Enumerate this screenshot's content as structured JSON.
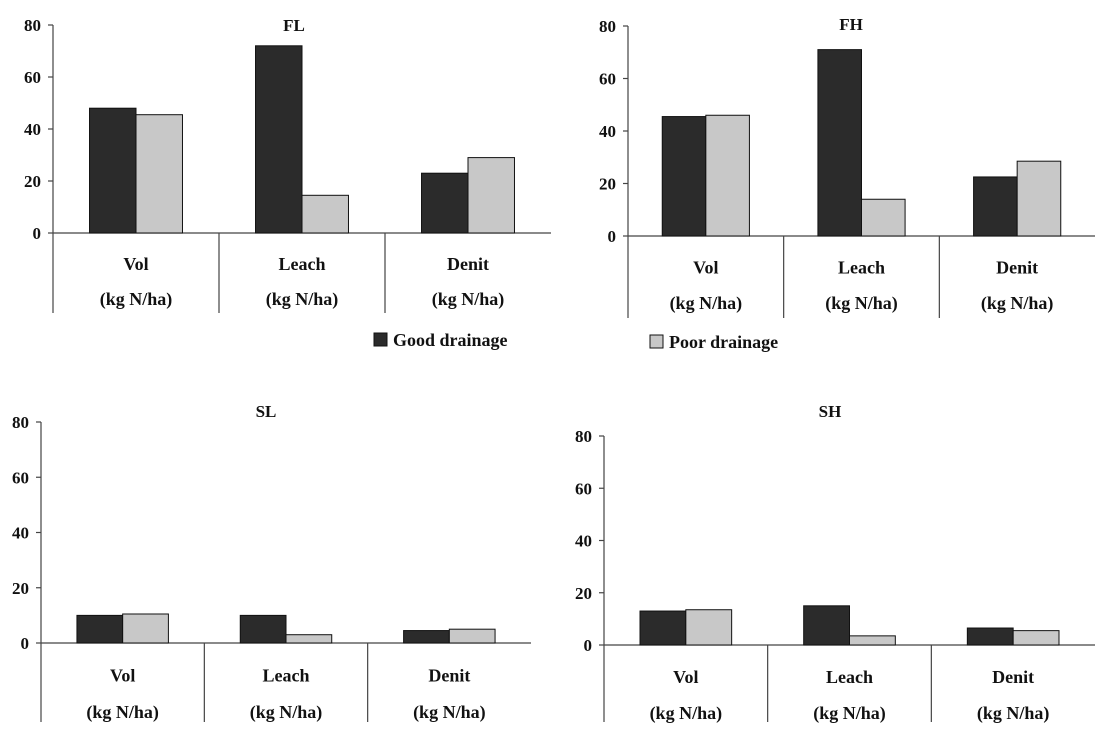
{
  "legend": [
    {
      "label": "Good drainage",
      "color": "#2b2b2b"
    },
    {
      "label": "Poor drainage",
      "color": "#c8c8c8"
    }
  ],
  "chart_data": [
    {
      "type": "bar",
      "title": "FL",
      "categories": [
        "Vol",
        "Leach",
        "Denit"
      ],
      "category_units": [
        "(kg N/ha)",
        "(kg N/ha)",
        "(kg N/ha)"
      ],
      "ylim": [
        0,
        80
      ],
      "yticks": [
        "0",
        "20",
        "40",
        "60",
        "80"
      ],
      "series": [
        {
          "name": "Good drainage",
          "values": [
            48,
            72,
            23
          ]
        },
        {
          "name": "Poor drainage",
          "values": [
            45.5,
            14.5,
            29
          ]
        }
      ]
    },
    {
      "type": "bar",
      "title": "FH",
      "categories": [
        "Vol",
        "Leach",
        "Denit"
      ],
      "category_units": [
        "(kg N/ha)",
        "(kg N/ha)",
        "(kg N/ha)"
      ],
      "ylim": [
        0,
        80
      ],
      "yticks": [
        "0",
        "20",
        "40",
        "60",
        "80"
      ],
      "series": [
        {
          "name": "Good drainage",
          "values": [
            45.5,
            71,
            22.5
          ]
        },
        {
          "name": "Poor drainage",
          "values": [
            46,
            14,
            28.5
          ]
        }
      ]
    },
    {
      "type": "bar",
      "title": "SL",
      "categories": [
        "Vol",
        "Leach",
        "Denit"
      ],
      "category_units": [
        "(kg N/ha)",
        "(kg N/ha)",
        "(kg N/ha)"
      ],
      "ylim": [
        0,
        80
      ],
      "yticks": [
        "0",
        "20",
        "40",
        "60",
        "80"
      ],
      "series": [
        {
          "name": "Good drainage",
          "values": [
            10,
            10,
            4.5
          ]
        },
        {
          "name": "Poor drainage",
          "values": [
            10.5,
            3,
            5
          ]
        }
      ]
    },
    {
      "type": "bar",
      "title": "SH",
      "categories": [
        "Vol",
        "Leach",
        "Denit"
      ],
      "category_units": [
        "(kg N/ha)",
        "(kg N/ha)",
        "(kg N/ha)"
      ],
      "ylim": [
        0,
        80
      ],
      "yticks": [
        "0",
        "20",
        "40",
        "60",
        "80"
      ],
      "series": [
        {
          "name": "Good drainage",
          "values": [
            13,
            15,
            6.5
          ]
        },
        {
          "name": "Poor drainage",
          "values": [
            13.5,
            3.5,
            5.5
          ]
        }
      ]
    }
  ]
}
